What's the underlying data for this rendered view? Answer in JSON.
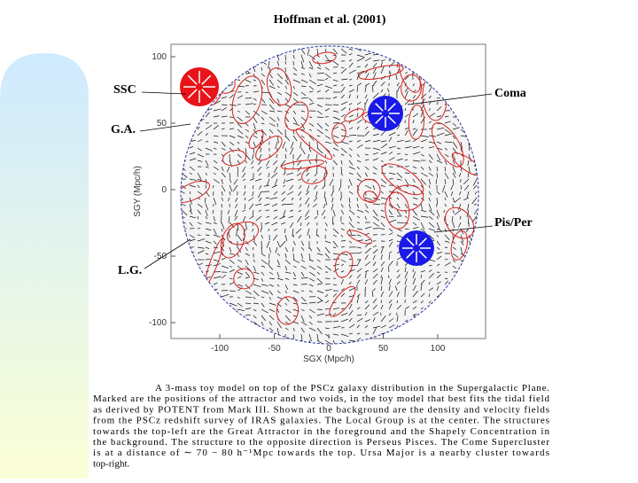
{
  "header": {
    "title": "Hoffman et al. (2001)"
  },
  "figure": {
    "x_axis_label": "SGX (Mpc/h)",
    "y_axis_label": "SGY (Mpc/h)",
    "xticks": [
      -100,
      -50,
      0,
      50,
      100
    ],
    "yticks": [
      100,
      50,
      0,
      -50,
      -100
    ],
    "labels": [
      "SSC",
      "Coma",
      "G.A.",
      "Pis/Per",
      "L.G."
    ]
  },
  "caption": {
    "lines": [
      "A 3-mass toy model on top of the PSCz galaxy distribution in the Supergalactic Plane.",
      "Marked are the positions of the attractor and two voids, in the toy model that best fits the tidal field",
      "as derived by POTENT from Mark III. Shown at the background are the density and velocity fields",
      "from the PSCz redshift survey of IRAS galaxies. The Local Group is at the center. The structures",
      "towards the top-left are the Great Attractor in the foreground and the Shapely Concentration in",
      "the background. The structure to the opposite direction is Perseus Pisces. The Come Supercluster",
      "is at a distance of ∼ 70 − 80 h⁻¹Mpc towards the top. Ursa Major is a nearby cluster towards",
      "top-right."
    ]
  }
}
